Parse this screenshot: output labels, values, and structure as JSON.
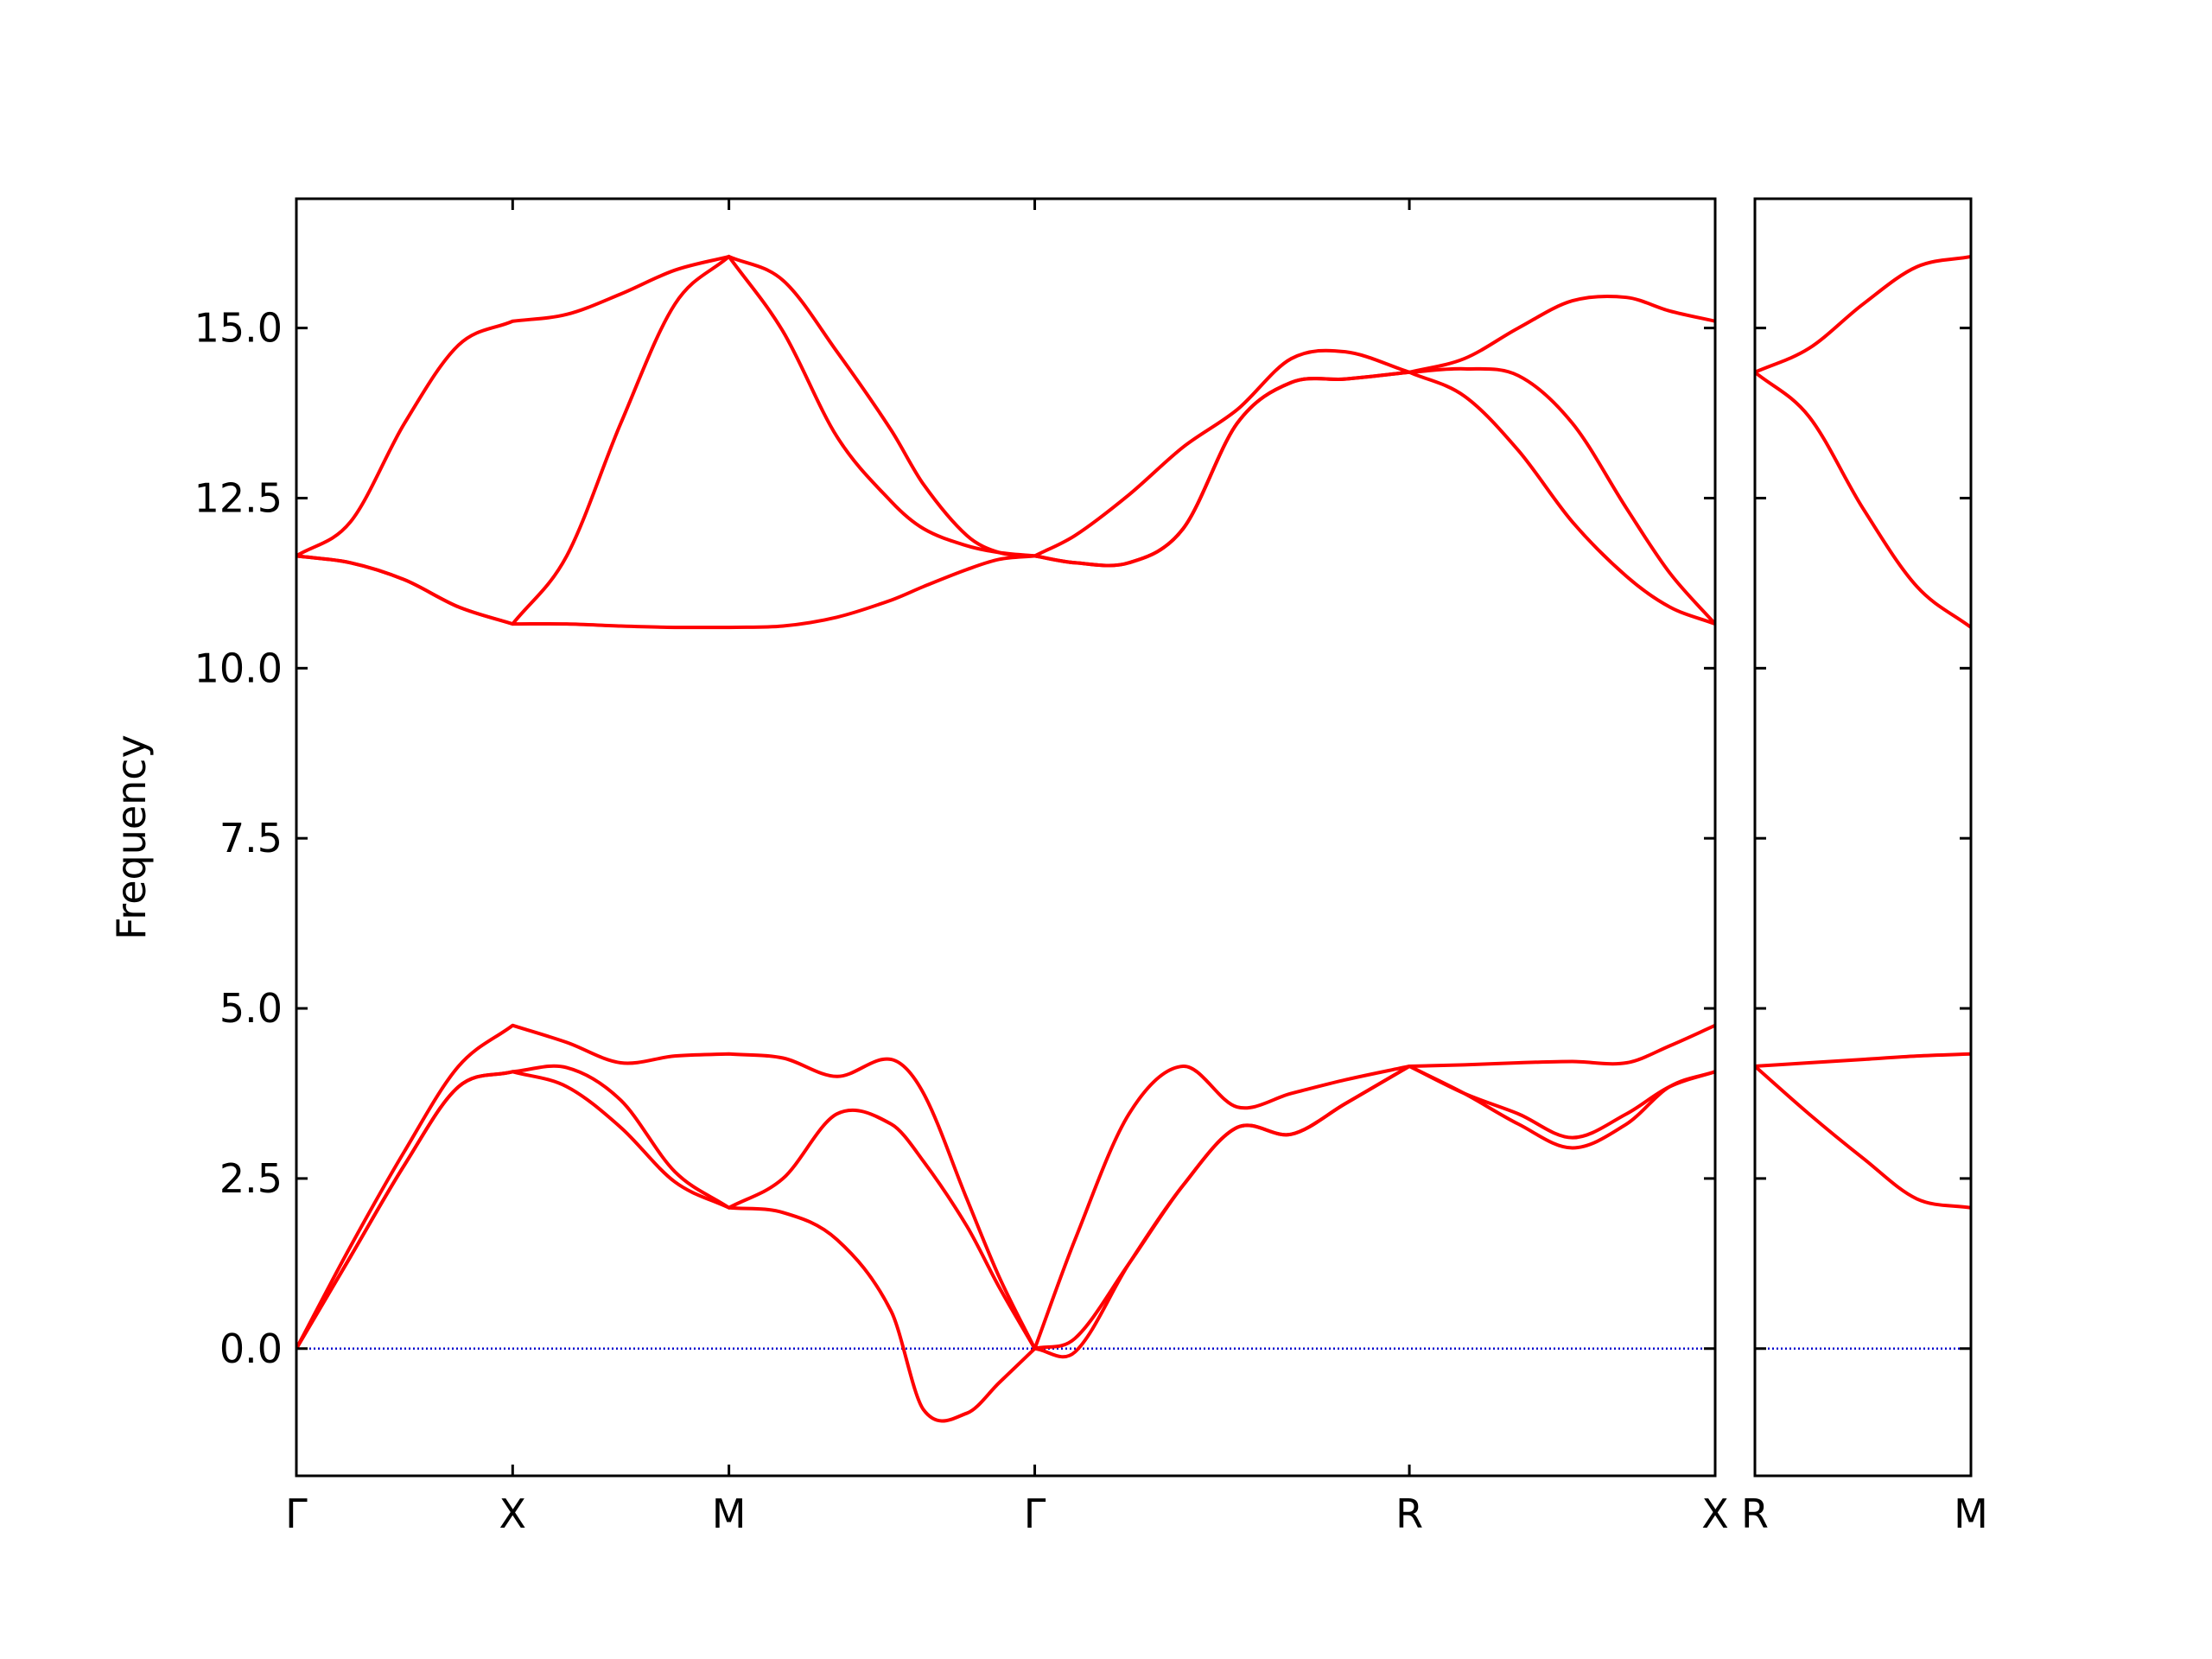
{
  "chart_data": [
    {
      "type": "line",
      "y_label": "Frequency",
      "x": [
        0,
        0.25,
        0.5,
        0.75,
        1,
        1.25,
        1.5,
        1.75,
        2,
        2.25,
        2.5,
        2.75,
        2.9,
        3.1,
        3.25,
        3.414,
        3.6,
        3.85,
        4.1,
        4.35,
        4.6,
        4.85,
        5.146,
        5.4,
        5.65,
        5.9,
        6.15,
        6.35,
        6.56
      ],
      "xlim": [
        0,
        6.56
      ],
      "xticks": [
        {
          "value": 0,
          "label": "Γ"
        },
        {
          "value": 1,
          "label": "X"
        },
        {
          "value": 2,
          "label": "M"
        },
        {
          "value": 3.414,
          "label": "Γ"
        },
        {
          "value": 5.146,
          "label": "R"
        },
        {
          "value": 6.56,
          "label": "X"
        }
      ],
      "ylim": [
        -1.87,
        16.9
      ],
      "yticks": [
        {
          "value": 0,
          "label": "0.0"
        },
        {
          "value": 2.5,
          "label": "2.5"
        },
        {
          "value": 5,
          "label": "5.0"
        },
        {
          "value": 7.5,
          "label": "7.5"
        },
        {
          "value": 10,
          "label": "10.0"
        },
        {
          "value": 12.5,
          "label": "12.5"
        },
        {
          "value": 15,
          "label": "15.0"
        }
      ],
      "hline": 0,
      "hline_color": "#0000cd",
      "series": [
        {
          "color": "#ff0000",
          "values": [
            0,
            1.35,
            2.7,
            3.85,
            4.07,
            3.85,
            3.25,
            2.45,
            2.07,
            2.0,
            1.6,
            0.55,
            -0.9,
            -0.95,
            -0.5,
            0,
            -0.05,
            1.25,
            2.4,
            3.25,
            3.15,
            3.6,
            4.15,
            3.75,
            3.3,
            2.95,
            3.3,
            3.85,
            4.07
          ]
        },
        {
          "color": "#ff0000",
          "values": [
            0,
            1.35,
            2.7,
            3.85,
            4.07,
            4.13,
            3.65,
            2.6,
            2.07,
            2.5,
            3.45,
            3.3,
            2.75,
            1.8,
            0.9,
            0,
            0.15,
            1.25,
            2.4,
            3.25,
            3.15,
            3.6,
            4.15,
            3.75,
            3.45,
            3.1,
            3.45,
            3.85,
            4.07
          ]
        },
        {
          "color": "#ff0000",
          "values": [
            0,
            1.5,
            2.9,
            4.15,
            4.75,
            4.5,
            4.2,
            4.3,
            4.33,
            4.27,
            4.0,
            4.25,
            3.75,
            2.2,
            1.05,
            0,
            1.6,
            3.45,
            4.15,
            3.55,
            3.75,
            3.95,
            4.15,
            4.17,
            4.2,
            4.22,
            4.2,
            4.45,
            4.75
          ]
        },
        {
          "color": "#ff0000",
          "values": [
            11.65,
            11.55,
            11.3,
            10.9,
            10.65,
            10.65,
            10.62,
            10.6,
            10.6,
            10.62,
            10.75,
            11.0,
            11.2,
            11.45,
            11.6,
            11.65,
            11.55,
            11.55,
            12.05,
            13.6,
            14.2,
            14.25,
            14.35,
            14.0,
            13.2,
            12.15,
            11.35,
            10.9,
            10.65
          ]
        },
        {
          "color": "#ff0000",
          "values": [
            11.65,
            11.55,
            11.3,
            10.9,
            10.65,
            11.65,
            13.6,
            15.35,
            16.05,
            14.95,
            13.4,
            12.45,
            12.05,
            11.8,
            11.7,
            11.65,
            11.55,
            11.55,
            12.05,
            13.6,
            14.2,
            14.25,
            14.35,
            14.4,
            14.3,
            13.6,
            12.35,
            11.4,
            10.65
          ]
        },
        {
          "color": "#ff0000",
          "values": [
            11.65,
            12.15,
            13.6,
            14.75,
            15.1,
            15.2,
            15.5,
            15.85,
            16.05,
            15.7,
            14.65,
            13.5,
            12.7,
            11.95,
            11.7,
            11.65,
            11.95,
            12.55,
            13.25,
            13.8,
            14.55,
            14.65,
            14.35,
            14.55,
            15.0,
            15.4,
            15.45,
            15.25,
            15.1
          ]
        }
      ]
    },
    {
      "type": "line",
      "x": [
        0,
        0.25,
        0.5,
        0.75,
        1
      ],
      "xlim": [
        0,
        1
      ],
      "xticks": [
        {
          "value": 0,
          "label": "R"
        },
        {
          "value": 1,
          "label": "M"
        }
      ],
      "ylim": [
        -1.87,
        16.9
      ],
      "yticks": [
        0,
        2.5,
        5,
        7.5,
        10,
        12.5,
        15
      ],
      "hline": 0,
      "hline_color": "#0000cd",
      "series": [
        {
          "color": "#ff0000",
          "values": [
            4.15,
            3.45,
            2.8,
            2.2,
            2.07
          ]
        },
        {
          "color": "#ff0000",
          "values": [
            4.15,
            4.2,
            4.25,
            4.3,
            4.33
          ]
        },
        {
          "color": "#ff0000",
          "values": [
            14.35,
            13.7,
            12.35,
            11.2,
            10.6
          ]
        },
        {
          "color": "#ff0000",
          "values": [
            14.35,
            14.7,
            15.35,
            15.9,
            16.05
          ]
        }
      ]
    }
  ]
}
